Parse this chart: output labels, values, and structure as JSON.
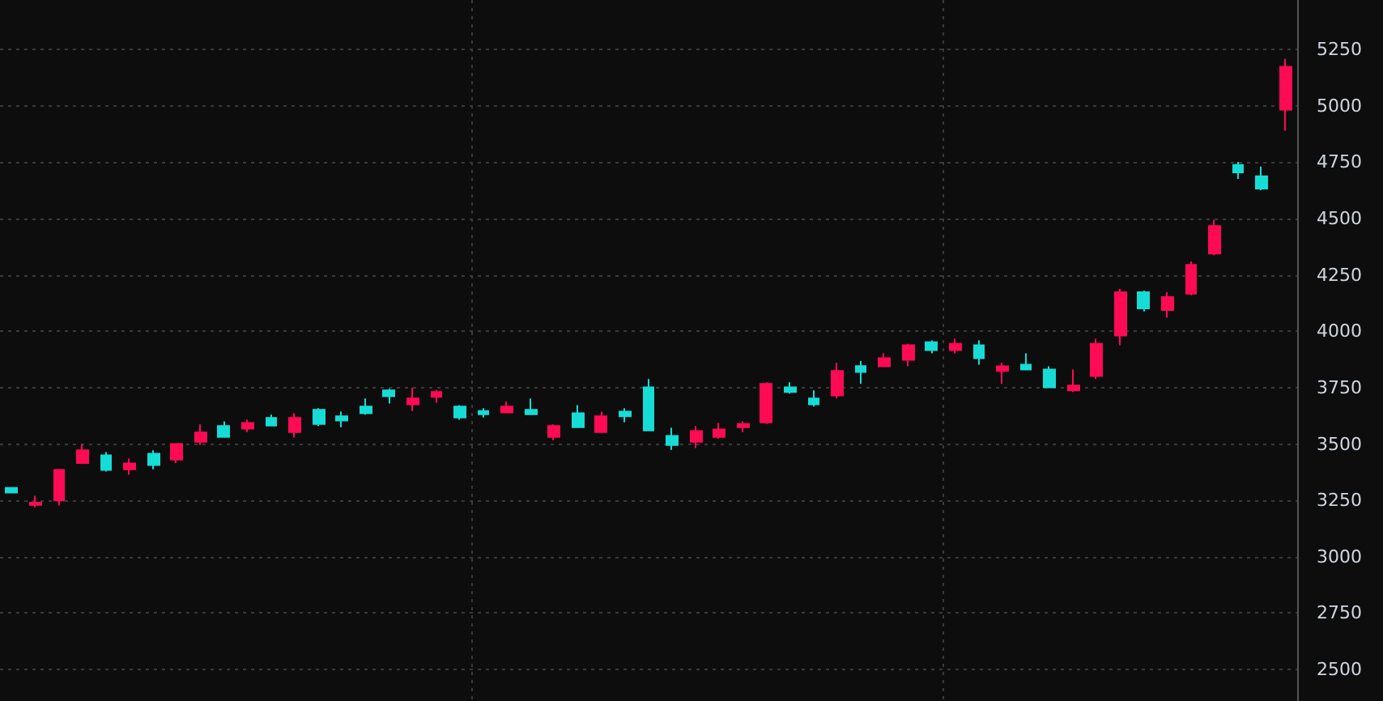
{
  "chart_data": {
    "type": "candlestick",
    "categories": [
      null,
      null,
      null,
      null,
      null,
      null,
      null,
      null,
      null,
      null,
      null,
      null,
      null,
      null,
      null,
      null,
      null,
      null,
      null,
      null,
      null,
      null,
      null,
      null,
      null,
      null,
      null,
      null,
      null,
      null,
      null,
      null,
      null,
      null,
      null,
      null,
      null,
      null,
      null,
      null,
      null,
      null,
      null,
      null,
      null,
      null,
      null,
      null,
      null,
      null,
      null,
      null,
      null,
      null,
      null
    ],
    "ohlc": [
      [
        3305,
        3305,
        3285,
        3285
      ],
      [
        3230,
        3270,
        3220,
        3240
      ],
      [
        3250,
        3385,
        3227,
        3385
      ],
      [
        3416,
        3500,
        3416,
        3472
      ],
      [
        3450,
        3464,
        3378,
        3385
      ],
      [
        3388,
        3436,
        3364,
        3414
      ],
      [
        3457,
        3472,
        3388,
        3407
      ],
      [
        3431,
        3500,
        3416,
        3500
      ],
      [
        3510,
        3587,
        3496,
        3551
      ],
      [
        3580,
        3601,
        3532,
        3532
      ],
      [
        3568,
        3608,
        3553,
        3594
      ],
      [
        3616,
        3630,
        3582,
        3582
      ],
      [
        3553,
        3637,
        3529,
        3616
      ],
      [
        3652,
        3659,
        3580,
        3589
      ],
      [
        3623,
        3644,
        3575,
        3604
      ],
      [
        3666,
        3702,
        3630,
        3637
      ],
      [
        3738,
        3745,
        3680,
        3712
      ],
      [
        3676,
        3750,
        3647,
        3702
      ],
      [
        3709,
        3740,
        3683,
        3731
      ],
      [
        3666,
        3673,
        3608,
        3618
      ],
      [
        3647,
        3659,
        3618,
        3632
      ],
      [
        3640,
        3688,
        3640,
        3666
      ],
      [
        3652,
        3702,
        3632,
        3632
      ],
      [
        3532,
        3587,
        3517,
        3580
      ],
      [
        3637,
        3673,
        3575,
        3575
      ],
      [
        3553,
        3644,
        3553,
        3623
      ],
      [
        3644,
        3659,
        3596,
        3623
      ],
      [
        3752,
        3788,
        3560,
        3560
      ],
      [
        3536,
        3572,
        3474,
        3496
      ],
      [
        3510,
        3580,
        3482,
        3558
      ],
      [
        3532,
        3594,
        3524,
        3565
      ],
      [
        3575,
        3601,
        3553,
        3589
      ],
      [
        3596,
        3774,
        3589,
        3767
      ],
      [
        3752,
        3774,
        3724,
        3731
      ],
      [
        3702,
        3738,
        3666,
        3676
      ],
      [
        3716,
        3860,
        3702,
        3824
      ],
      [
        3846,
        3868,
        3767,
        3820
      ],
      [
        3845,
        3902,
        3845,
        3881
      ],
      [
        3874,
        3945,
        3845,
        3938
      ],
      [
        3952,
        3960,
        3902,
        3917
      ],
      [
        3917,
        3967,
        3902,
        3945
      ],
      [
        3938,
        3960,
        3852,
        3881
      ],
      [
        3824,
        3860,
        3767,
        3845
      ],
      [
        3852,
        3902,
        3831,
        3831
      ],
      [
        3831,
        3845,
        3752,
        3752
      ],
      [
        3738,
        3831,
        3731,
        3760
      ],
      [
        3802,
        3967,
        3788,
        3945
      ],
      [
        3981,
        4188,
        3938,
        4174
      ],
      [
        4174,
        4181,
        4088,
        4102
      ],
      [
        4095,
        4174,
        4060,
        4152
      ],
      [
        4167,
        4310,
        4160,
        4295
      ],
      [
        4345,
        4495,
        4338,
        4467
      ],
      [
        4738,
        4752,
        4676,
        4705
      ],
      [
        4688,
        4731,
        4626,
        4633
      ],
      [
        4983,
        5210,
        4890,
        5174
      ]
    ],
    "colors": [
      "#16dcd6",
      "#ff0a54",
      "#ff0a54",
      "#ff0a54",
      "#16dcd6",
      "#ff0a54",
      "#16dcd6",
      "#ff0a54",
      "#ff0a54",
      "#16dcd6",
      "#ff0a54",
      "#16dcd6",
      "#ff0a54",
      "#16dcd6",
      "#16dcd6",
      "#16dcd6",
      "#16dcd6",
      "#ff0a54",
      "#ff0a54",
      "#16dcd6",
      "#16dcd6",
      "#ff0a54",
      "#16dcd6",
      "#ff0a54",
      "#16dcd6",
      "#ff0a54",
      "#16dcd6",
      "#16dcd6",
      "#16dcd6",
      "#ff0a54",
      "#ff0a54",
      "#ff0a54",
      "#ff0a54",
      "#16dcd6",
      "#16dcd6",
      "#ff0a54",
      "#16dcd6",
      "#ff0a54",
      "#ff0a54",
      "#16dcd6",
      "#ff0a54",
      "#16dcd6",
      "#ff0a54",
      "#16dcd6",
      "#16dcd6",
      "#ff0a54",
      "#ff0a54",
      "#ff0a54",
      "#16dcd6",
      "#ff0a54",
      "#ff0a54",
      "#ff0a54",
      "#16dcd6",
      "#16dcd6",
      "#ff0a54"
    ],
    "ylim": [
      2360,
      5470
    ],
    "yticks": [
      2500,
      2750,
      3000,
      3250,
      3500,
      3750,
      4000,
      4250,
      4500,
      4750,
      5000,
      5250
    ],
    "grid": true
  }
}
